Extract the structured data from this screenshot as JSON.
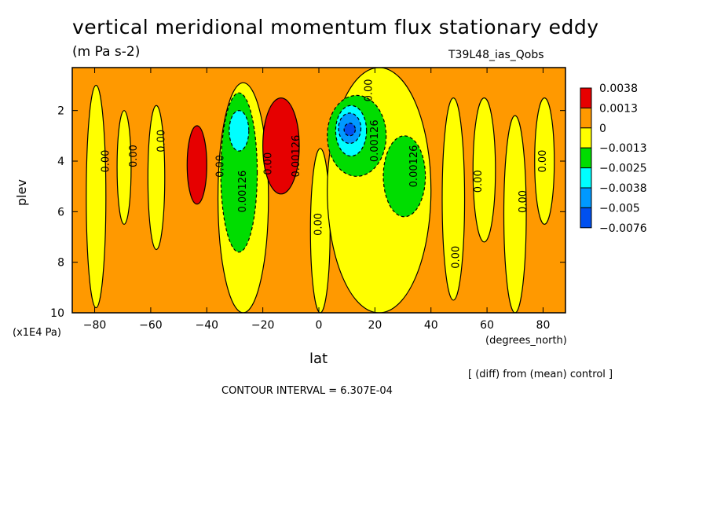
{
  "title": "vertical meridional momentum flux stationary eddy",
  "units": "(m Pa s-2)",
  "run_name": "T39L48_ias_Qobs",
  "diff_note": "[ (diff) from (mean) control ]",
  "contour_interval": "CONTOUR INTERVAL = 6.307E-04",
  "colors": {
    "red": "#e60000",
    "orange": "#ff9900",
    "yellow": "#ffff00",
    "green": "#00dd00",
    "cyan": "#00ffff",
    "blue_mid": "#0099ff",
    "blue": "#0050f0"
  },
  "chart_data": {
    "type": "contour",
    "title": "vertical meridional momentum flux stationary eddy",
    "xlabel": "lat",
    "xunit": "(degrees_north)",
    "ylabel": "plev",
    "yunit": "(x1E4 Pa)",
    "xlim": [
      -88,
      88
    ],
    "ylim": [
      10,
      0.3
    ],
    "x_ticks": [
      -80,
      -60,
      -40,
      -20,
      0,
      20,
      40,
      60,
      80
    ],
    "x_tick_labels": [
      "−80",
      "−60",
      "−40",
      "−20",
      "0",
      "20",
      "40",
      "60",
      "80"
    ],
    "y_ticks": [
      2,
      4,
      6,
      8,
      10
    ],
    "y_tick_labels": [
      "2",
      "4",
      "6",
      "8",
      "10"
    ],
    "legend_levels": [
      "0.0038",
      "0.0013",
      "0",
      "−0.0013",
      "−0.0025",
      "−0.0038",
      "−0.005",
      "−0.0076"
    ],
    "legend_colors": [
      "#e60000",
      "#ff9900",
      "#ffff00",
      "#00dd00",
      "#00ffff",
      "#0099ff",
      "#0050f0"
    ],
    "background_color": "#ff9900",
    "regions": [
      {
        "name": "yellow-band-sh-1",
        "color": "#ffff00",
        "lat": [
          -83,
          -76
        ],
        "plev": [
          1.0,
          9.8
        ]
      },
      {
        "name": "yellow-band-sh-2",
        "color": "#ffff00",
        "lat": [
          -72,
          -67
        ],
        "plev": [
          2.0,
          6.5
        ]
      },
      {
        "name": "yellow-band-sh-3",
        "color": "#ffff00",
        "lat": [
          -61,
          -55
        ],
        "plev": [
          1.8,
          7.5
        ]
      },
      {
        "name": "yellow-tongue-sh",
        "color": "#ffff00",
        "lat": [
          -36,
          -18
        ],
        "plev": [
          0.9,
          10
        ]
      },
      {
        "name": "yellow-eq",
        "color": "#ffff00",
        "lat": [
          -3,
          4
        ],
        "plev": [
          3.5,
          10
        ]
      },
      {
        "name": "yellow-nh-main",
        "color": "#ffff00",
        "lat": [
          3,
          40
        ],
        "plev": [
          0.3,
          10
        ]
      },
      {
        "name": "yellow-nh-4",
        "color": "#ffff00",
        "lat": [
          44,
          52
        ],
        "plev": [
          1.5,
          9.5
        ]
      },
      {
        "name": "yellow-nh-5",
        "color": "#ffff00",
        "lat": [
          55,
          63
        ],
        "plev": [
          1.5,
          7.2
        ]
      },
      {
        "name": "yellow-nh-6",
        "color": "#ffff00",
        "lat": [
          66,
          74
        ],
        "plev": [
          2.2,
          10
        ]
      },
      {
        "name": "yellow-nh-7",
        "color": "#ffff00",
        "lat": [
          77,
          84
        ],
        "plev": [
          1.5,
          6.5
        ]
      },
      {
        "name": "red-sh-40",
        "color": "#e60000",
        "lat": [
          -47,
          -40
        ],
        "plev": [
          2.6,
          5.7
        ]
      },
      {
        "name": "red-sh-15",
        "color": "#e60000",
        "lat": [
          -20,
          -7
        ],
        "plev": [
          1.5,
          5.3
        ]
      },
      {
        "name": "green-sh-27",
        "color": "#00dd00",
        "lat": [
          -35,
          -22
        ],
        "plev": [
          1.3,
          7.6
        ]
      },
      {
        "name": "cyan-sh-27",
        "color": "#00ffff",
        "lat": [
          -32,
          -25
        ],
        "plev": [
          2.0,
          3.6
        ]
      },
      {
        "name": "green-nh-10",
        "color": "#00dd00",
        "lat": [
          3,
          24
        ],
        "plev": [
          1.4,
          4.6
        ]
      },
      {
        "name": "cyan-nh-10",
        "color": "#00ffff",
        "lat": [
          6,
          17
        ],
        "plev": [
          1.8,
          3.8
        ]
      },
      {
        "name": "blue-mid-nh-10",
        "color": "#0099ff",
        "lat": [
          7,
          15
        ],
        "plev": [
          2.1,
          3.3
        ]
      },
      {
        "name": "blue-nh-10",
        "color": "#0050f0",
        "lat": [
          9,
          13
        ],
        "plev": [
          2.5,
          3.0
        ]
      },
      {
        "name": "green-nh-32",
        "color": "#00dd00",
        "lat": [
          23,
          38
        ],
        "plev": [
          3.0,
          6.2
        ]
      }
    ],
    "contour_labels": [
      {
        "text": "0.00",
        "lat": -76,
        "plev": 4.0
      },
      {
        "text": "0.00",
        "lat": -66,
        "plev": 3.8
      },
      {
        "text": "0.00",
        "lat": -56,
        "plev": 3.2
      },
      {
        "text": "0.00",
        "lat": -35,
        "plev": 4.2
      },
      {
        "text": "0.00126",
        "lat": -27,
        "plev": 5.2
      },
      {
        "text": "0.00",
        "lat": -18,
        "plev": 4.1
      },
      {
        "text": "0.00126",
        "lat": -8,
        "plev": 3.8
      },
      {
        "text": "0.00",
        "lat": 0,
        "plev": 6.5
      },
      {
        "text": "0.00",
        "lat": 18,
        "plev": 1.2
      },
      {
        "text": "0.00126",
        "lat": 20,
        "plev": 3.2
      },
      {
        "text": "0.00126",
        "lat": 34,
        "plev": 4.2
      },
      {
        "text": "0.00",
        "lat": 49,
        "plev": 7.8
      },
      {
        "text": "0.00",
        "lat": 57,
        "plev": 4.8
      },
      {
        "text": "0.00",
        "lat": 73,
        "plev": 5.6
      },
      {
        "text": "0.00",
        "lat": 80,
        "plev": 4.0
      }
    ]
  }
}
